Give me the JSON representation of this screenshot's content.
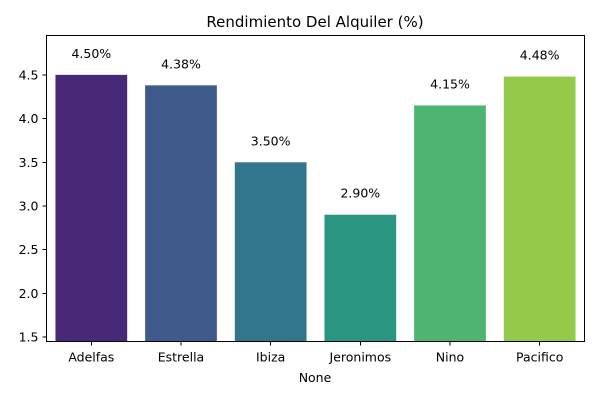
{
  "chart_data": {
    "type": "bar",
    "title": "Rendimiento Del Alquiler (%)",
    "xlabel": "None",
    "ylabel": "",
    "categories": [
      "Adelfas",
      "Estrella",
      "Ibiza",
      "Jeronimos",
      "Nino",
      "Pacifico"
    ],
    "values": [
      4.5,
      4.38,
      3.5,
      2.9,
      4.15,
      4.48
    ],
    "value_labels": [
      "4.50%",
      "4.38%",
      "3.50%",
      "2.90%",
      "4.15%",
      "4.48%"
    ],
    "ylim": [
      1.45,
      4.95
    ],
    "yticks": [
      1.5,
      2.0,
      2.5,
      3.0,
      3.5,
      4.0,
      4.5
    ],
    "ytick_labels": [
      "1.5",
      "2.0",
      "2.5",
      "3.0",
      "3.5",
      "4.0",
      "4.5"
    ],
    "colors": [
      "#482878",
      "#3e5a8a",
      "#31768a",
      "#2a9580",
      "#4fb46f",
      "#94c94a"
    ],
    "grid": false,
    "legend": "none"
  }
}
